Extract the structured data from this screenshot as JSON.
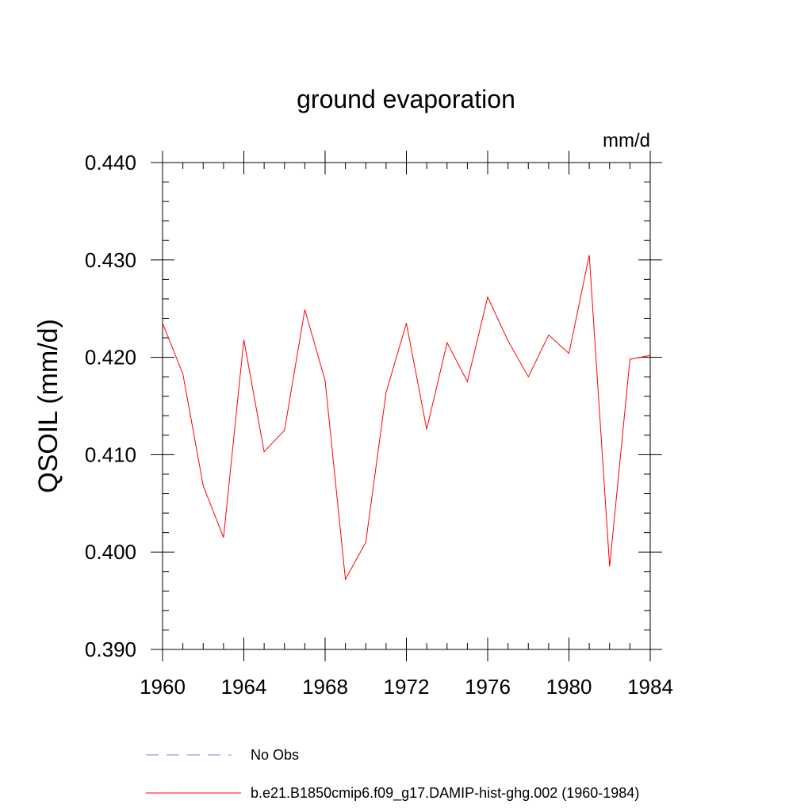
{
  "chart_data": {
    "type": "line",
    "title": "ground evaporation",
    "units_label": "mm/d",
    "ylabel": "QSOIL  (mm/d)",
    "xlabel": "",
    "xlim": [
      1960,
      1984
    ],
    "ylim": [
      0.39,
      0.44
    ],
    "x_ticks": [
      1960,
      1964,
      1968,
      1972,
      1976,
      1980,
      1984
    ],
    "x_tick_labels": [
      "1960",
      "1964",
      "1968",
      "1972",
      "1976",
      "1980",
      "1984"
    ],
    "y_ticks": [
      0.39,
      0.4,
      0.41,
      0.42,
      0.43,
      0.44
    ],
    "y_tick_labels": [
      "0.390",
      "0.400",
      "0.410",
      "0.420",
      "0.430",
      "0.440"
    ],
    "grid": false,
    "legend_position": "bottom",
    "series": [
      {
        "name": "b.e21.B1850cmip6.f09_g17.DAMIP-hist-ghg.002 (1960-1984)",
        "color": "#ff0000",
        "style": "solid",
        "x": [
          1960,
          1961,
          1962,
          1963,
          1964,
          1965,
          1966,
          1967,
          1968,
          1969,
          1970,
          1971,
          1972,
          1973,
          1974,
          1975,
          1976,
          1977,
          1978,
          1979,
          1980,
          1981,
          1982,
          1983,
          1984
        ],
        "values": [
          0.4235,
          0.4183,
          0.4068,
          0.4015,
          0.4218,
          0.4103,
          0.4125,
          0.4249,
          0.4176,
          0.3972,
          0.401,
          0.4164,
          0.4235,
          0.4126,
          0.4215,
          0.4175,
          0.4262,
          0.4217,
          0.418,
          0.4223,
          0.4204,
          0.4305,
          0.3985,
          0.4198,
          0.4202
        ]
      },
      {
        "name": "No Obs",
        "color": "#8a7fd0",
        "style": "dashed",
        "x": [],
        "values": []
      }
    ]
  }
}
